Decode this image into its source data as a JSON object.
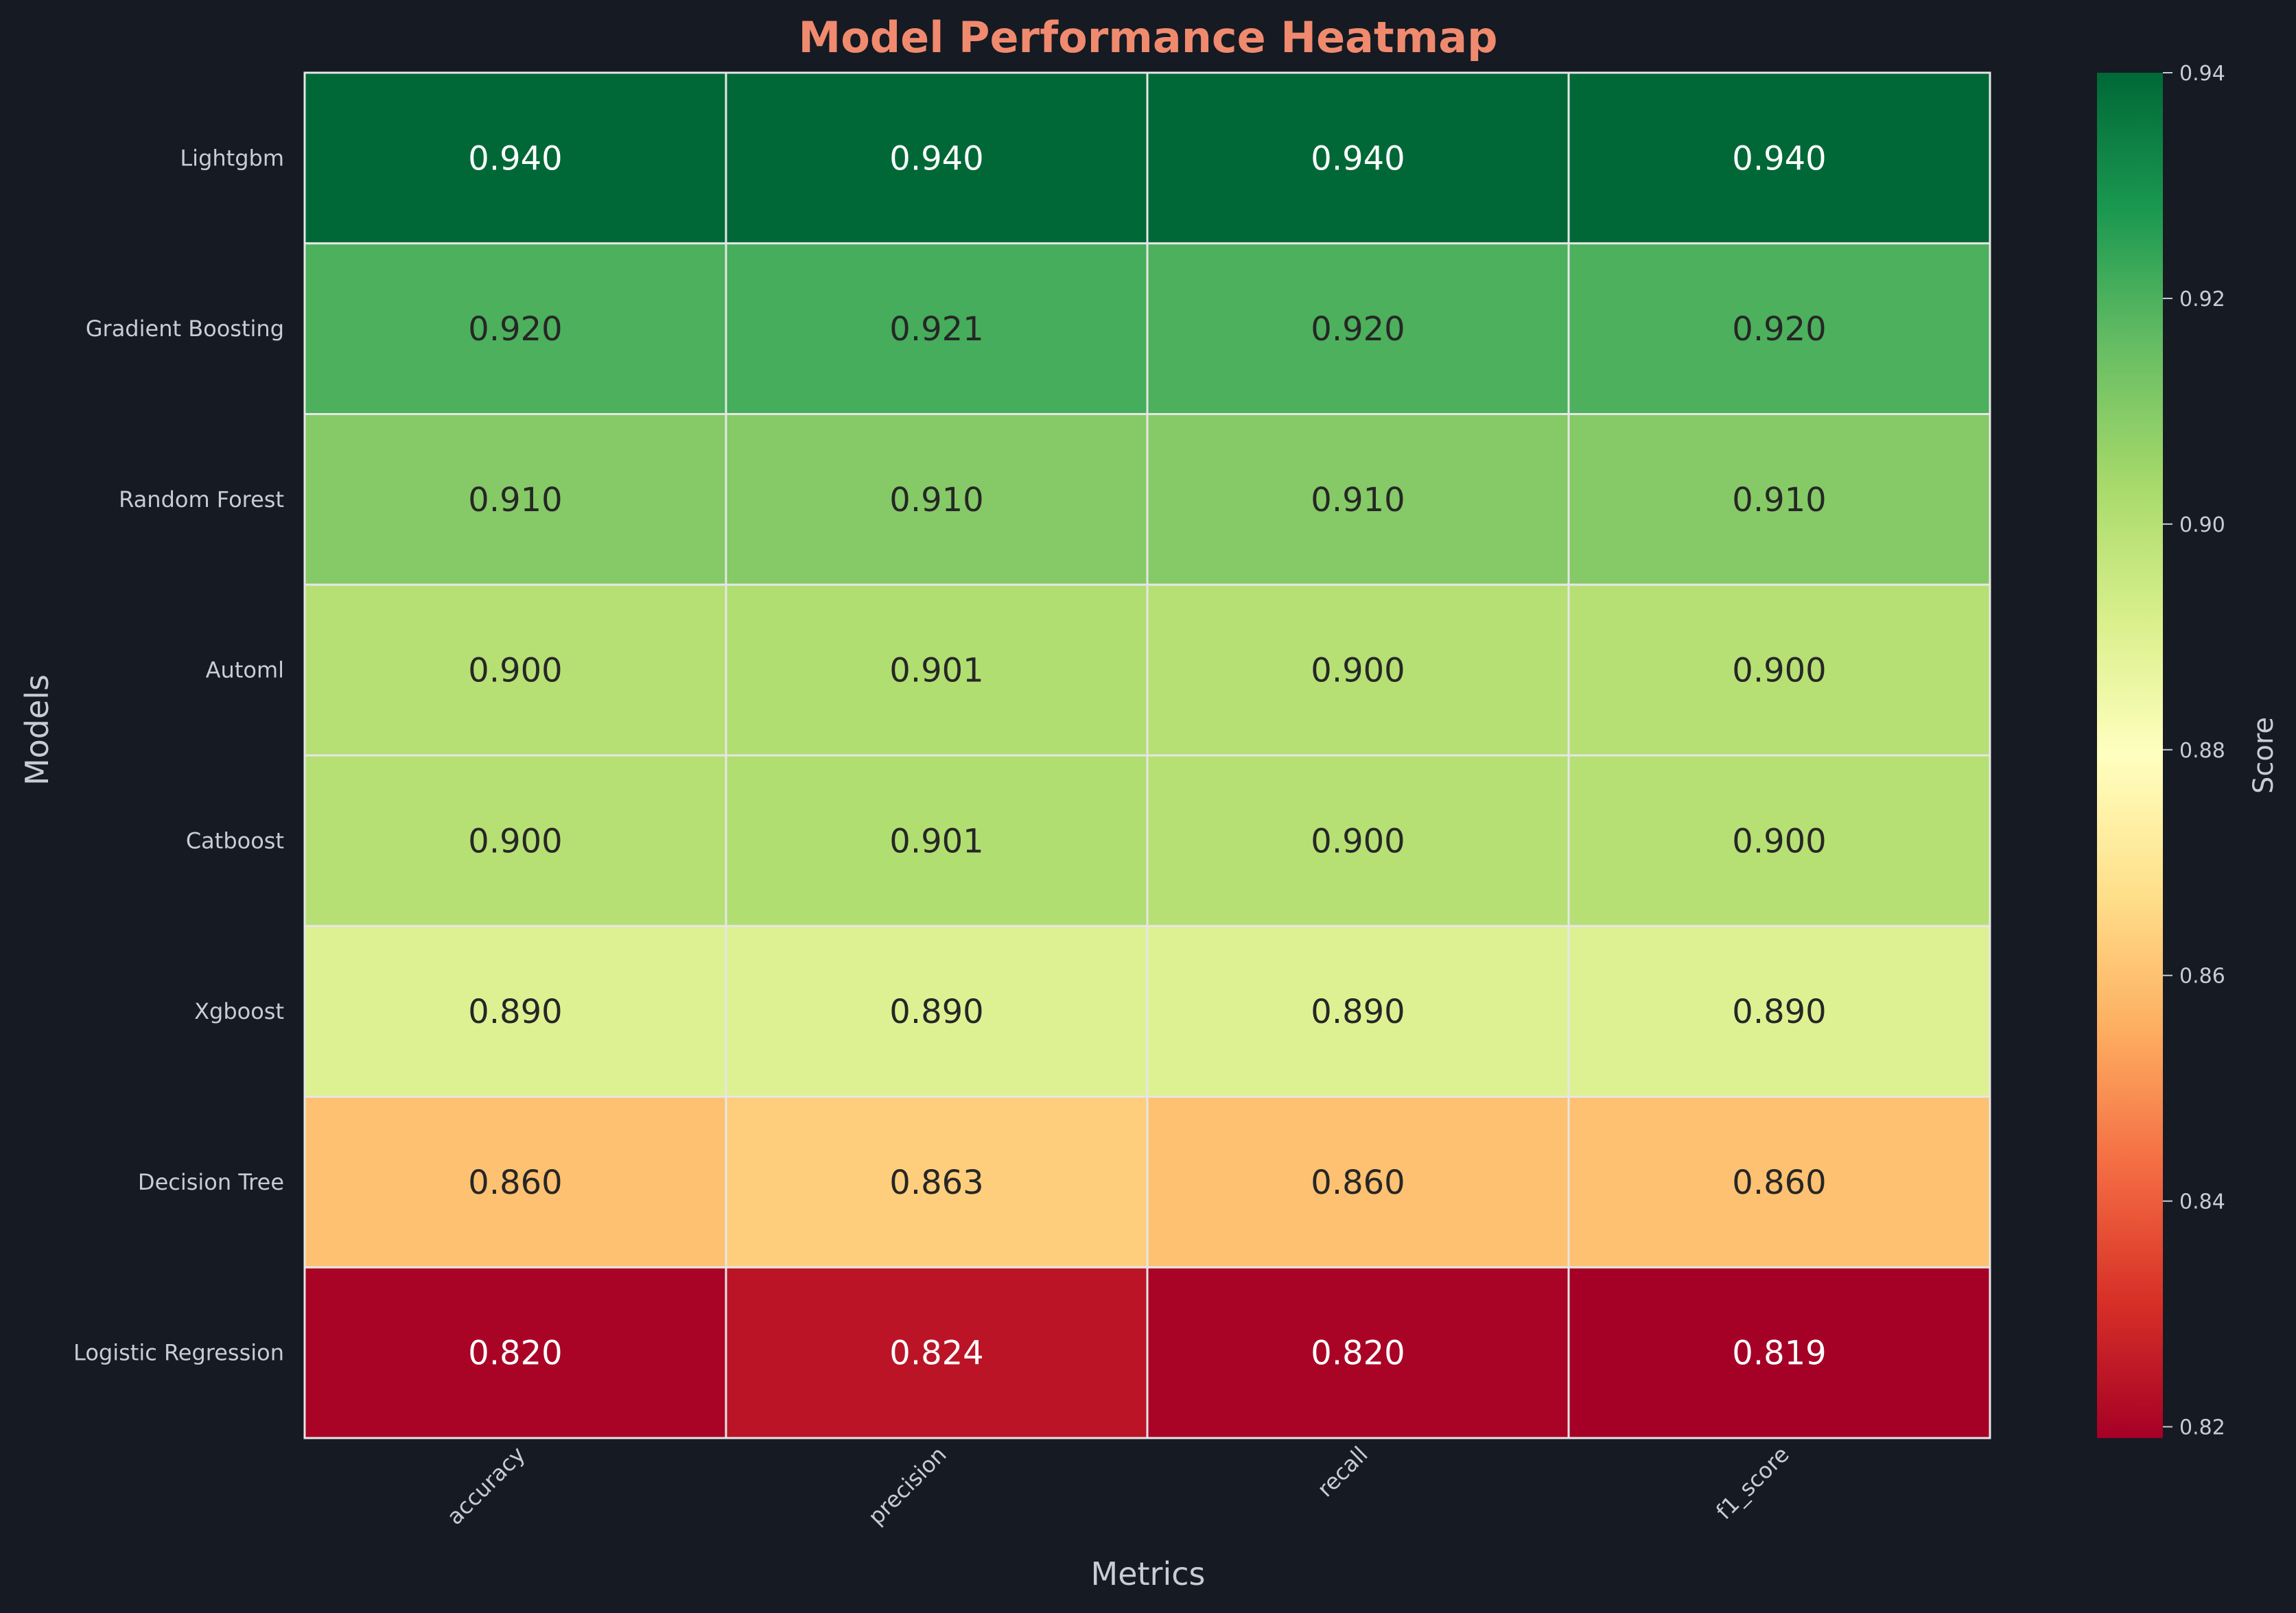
{
  "chart_data": {
    "type": "heatmap",
    "title": "Model Performance Heatmap",
    "xlabel": "Metrics",
    "ylabel": "Models",
    "colorbar_label": "Score",
    "columns": [
      "accuracy",
      "precision",
      "recall",
      "f1_score"
    ],
    "rows": [
      "Lightgbm",
      "Gradient Boosting",
      "Random Forest",
      "Automl",
      "Catboost",
      "Xgboost",
      "Decision Tree",
      "Logistic Regression"
    ],
    "values": [
      [
        0.94,
        0.94,
        0.94,
        0.94
      ],
      [
        0.92,
        0.921,
        0.92,
        0.92
      ],
      [
        0.91,
        0.91,
        0.91,
        0.91
      ],
      [
        0.9,
        0.901,
        0.9,
        0.9
      ],
      [
        0.9,
        0.901,
        0.9,
        0.9
      ],
      [
        0.89,
        0.89,
        0.89,
        0.89
      ],
      [
        0.86,
        0.863,
        0.86,
        0.86
      ],
      [
        0.82,
        0.824,
        0.82,
        0.819
      ]
    ],
    "color_range": [
      0.819,
      0.94
    ],
    "colorbar_ticks": [
      0.82,
      0.84,
      0.86,
      0.88,
      0.9,
      0.92,
      0.94
    ],
    "colormap": "RdYlGn",
    "colors": {
      "background": "#161a22",
      "title": "#f08a6e",
      "text": "#c8ccd4",
      "grid": "#e6e6e6"
    }
  }
}
